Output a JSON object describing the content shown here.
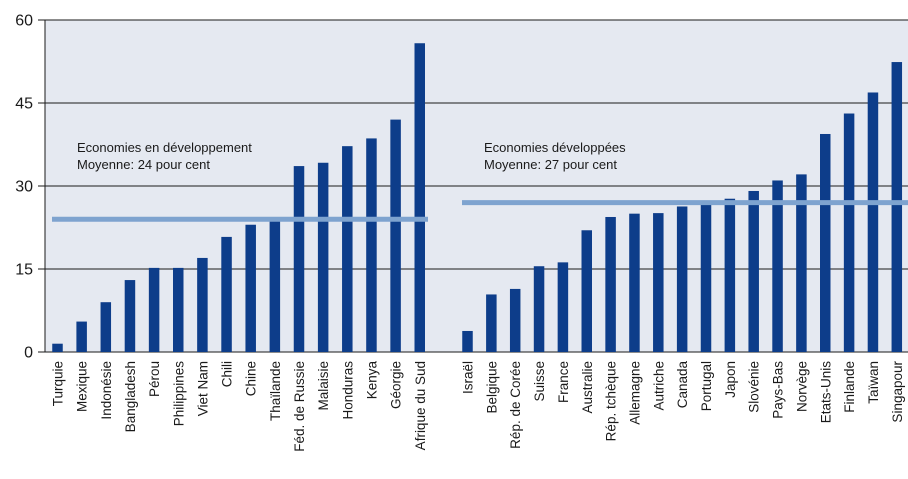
{
  "chart_data": {
    "type": "bar",
    "ylim": [
      0,
      60
    ],
    "yticks": [
      0,
      15,
      30,
      45,
      60
    ],
    "grid": "horizontal",
    "colors": {
      "plot_background": "#e5e9f1",
      "bar": "#0d3d8a",
      "average_line": "#7ea3cf",
      "grid": "#1a1a1a"
    },
    "groups": [
      {
        "annotation_lines": [
          "Economies en développement",
          "Moyenne: 24 pour cent"
        ],
        "average": 24,
        "categories": [
          "Turquie",
          "Mexique",
          "Indonésie",
          "Bangladesh",
          "Pérou",
          "Philippines",
          "Viet Nam",
          "Chili",
          "Chine",
          "Thaïlande",
          "Féd. de Russie",
          "Malaisie",
          "Honduras",
          "Kenya",
          "Géorgie",
          "Afrique du Sud"
        ],
        "values": [
          1.5,
          5.5,
          9,
          13,
          15.2,
          15.2,
          17,
          20.8,
          23,
          23.7,
          33.6,
          34.2,
          37.2,
          38.6,
          42,
          55.8
        ]
      },
      {
        "annotation_lines": [
          "Economies développées",
          "Moyenne: 27 pour cent"
        ],
        "average": 27,
        "categories": [
          "Israël",
          "Belgique",
          "Rép. de Corée",
          "Suisse",
          "France",
          "Australie",
          "Rép. tchèque",
          "Allemagne",
          "Autriche",
          "Canada",
          "Portugal",
          "Japon",
          "Slovénie",
          "Pays-Bas",
          "Norvège",
          "Etats-Unis",
          "Finlande",
          "Taïwan",
          "Singapour"
        ],
        "values": [
          3.8,
          10.4,
          11.4,
          15.5,
          16.2,
          22,
          24.4,
          25,
          25.1,
          26.3,
          27,
          27.7,
          29.1,
          31,
          32.1,
          39.4,
          43.1,
          46.9,
          52.4
        ]
      }
    ]
  }
}
